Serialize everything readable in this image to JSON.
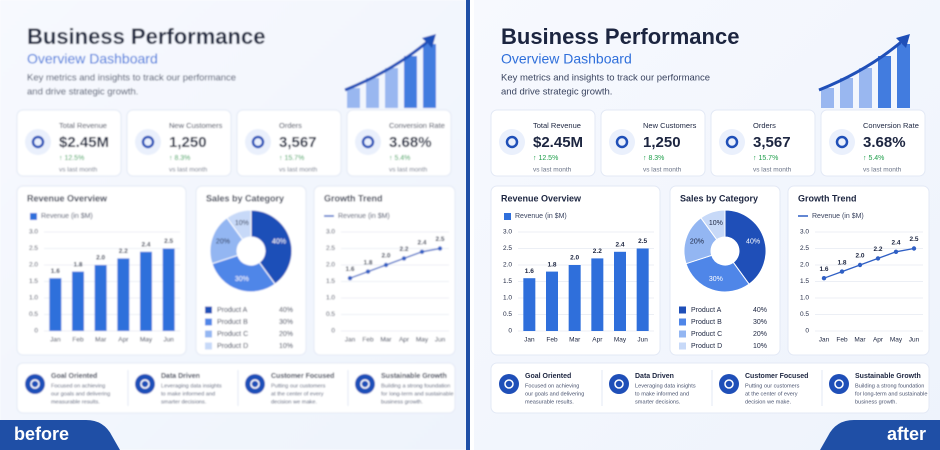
{
  "panels": [
    {
      "label": "before"
    },
    {
      "label": "after"
    }
  ],
  "header": {
    "title": "Business Performance",
    "subtitle": "Overview Dashboard",
    "description": [
      "Key metrics and insights to track our performance",
      "and drive strategic growth."
    ]
  },
  "metrics": [
    {
      "label": "Total Revenue",
      "value": "$2.45M",
      "change": "↑ 12.5%",
      "note": "vs last month"
    },
    {
      "label": "New Customers",
      "value": "1,250",
      "change": "↑ 8.3%",
      "note": "vs last month"
    },
    {
      "label": "Orders",
      "value": "3,567",
      "change": "↑ 15.7%",
      "note": "vs last month"
    },
    {
      "label": "Conversion Rate",
      "value": "3.68%",
      "change": "↑ 5.4%",
      "note": "vs last month"
    }
  ],
  "chart_data": [
    {
      "type": "bar",
      "title": "Revenue Overview",
      "categories": [
        "Jan",
        "Feb",
        "Mar",
        "Apr",
        "May",
        "Jun"
      ],
      "series": [
        {
          "name": "Revenue (in $M)",
          "color": "#2f6fdb",
          "values": [
            1.6,
            1.8,
            2.0,
            2.2,
            2.4,
            2.5
          ],
          "value_labels": [
            "1.6",
            "1.8",
            "2.0",
            "2.2",
            "2.4",
            "2.5"
          ]
        }
      ],
      "ylim": [
        0,
        3
      ],
      "yticks": [
        0,
        0.5,
        {
          "value": 1,
          "label": "1.0"
        },
        1.5,
        {
          "value": 2,
          "label": "2.0"
        },
        2.5,
        {
          "value": 3,
          "label": "3.0"
        }
      ],
      "grid": true
    },
    {
      "type": "pie",
      "title": "Sales by Category",
      "categories": [
        "Product A",
        "Product B",
        "Product C",
        "Product D"
      ],
      "values": [
        40,
        30,
        20,
        10
      ],
      "value_labels": [
        "40%",
        "30%",
        "20%",
        "10%"
      ],
      "colors": [
        "#1f4fb8",
        "#4f86e8",
        "#93b6f2",
        "#c7d9f8"
      ]
    },
    {
      "type": "line",
      "title": "Growth Trend",
      "categories": [
        "Jan",
        "Feb",
        "Mar",
        "Apr",
        "May",
        "Jun"
      ],
      "series": [
        {
          "name": "Revenue (in $M)",
          "color": "#2f5fc4",
          "values": [
            1.6,
            1.8,
            2.0,
            2.2,
            2.4,
            2.5
          ],
          "value_labels": [
            "1.6",
            "1.8",
            "2.0",
            "2.2",
            "2.4",
            "2.5"
          ]
        }
      ],
      "ylim": [
        0,
        3
      ],
      "yticks": [
        0,
        0.5,
        {
          "value": 1,
          "label": "1.0"
        },
        1.5,
        {
          "value": 2,
          "label": "2.0"
        },
        2.5,
        {
          "value": 3,
          "label": "3.0"
        }
      ],
      "grid": true
    }
  ],
  "features": [
    {
      "title": "Goal Oriented",
      "text": [
        "Focused on achieving",
        "our goals and delivering",
        "measurable results."
      ]
    },
    {
      "title": "Data Driven",
      "text": [
        "Leveraging data insights",
        "to make informed and",
        "smarter decisions."
      ]
    },
    {
      "title": "Customer Focused",
      "text": [
        "Putting our customers",
        "at the center of every",
        "decision we make."
      ]
    },
    {
      "title": "Sustainable Growth",
      "text": [
        "Building a strong foundation",
        "for long-term and sustainable",
        "business growth."
      ]
    }
  ]
}
